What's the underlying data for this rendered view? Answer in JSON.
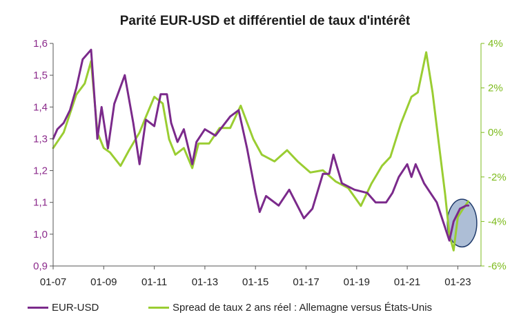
{
  "chart_data": {
    "type": "line",
    "title": "Parité EUR-USD et différentiel de taux d'intérêt",
    "xlabel": "",
    "ylabel": "",
    "x_tick_labels": [
      "01-07",
      "01-09",
      "01-11",
      "01-13",
      "01-15",
      "01-17",
      "01-19",
      "01-21",
      "01-23"
    ],
    "x_range": [
      "2007-01",
      "2023-12"
    ],
    "y_left": {
      "ticks": [
        "0,9",
        "1,0",
        "1,1",
        "1,2",
        "1,3",
        "1,4",
        "1,5",
        "1,6"
      ],
      "range": [
        0.9,
        1.6
      ],
      "color": "#8b2a8b"
    },
    "y_right": {
      "ticks": [
        "-6%",
        "-4%",
        "-2%",
        "0%",
        "2%",
        "4%"
      ],
      "range": [
        -6,
        4
      ],
      "color": "#7dbb1c"
    },
    "grid": false,
    "legend_position": "bottom",
    "highlight": {
      "shape": "ellipse",
      "x_range": [
        "2022-08",
        "2023-10"
      ],
      "y_range": [
        0.96,
        1.11
      ],
      "fill": "#4a6fa5",
      "stroke": "#1f3a6b"
    },
    "series": [
      {
        "name": "EUR-USD",
        "axis": "left",
        "color": "#7b2a8b",
        "x": [
          "2007-01",
          "2007-03",
          "2007-06",
          "2007-09",
          "2007-12",
          "2008-03",
          "2008-07",
          "2008-10",
          "2008-12",
          "2009-03",
          "2009-06",
          "2009-11",
          "2010-03",
          "2010-06",
          "2010-09",
          "2011-01",
          "2011-04",
          "2011-07",
          "2011-09",
          "2011-12",
          "2012-03",
          "2012-07",
          "2012-09",
          "2013-01",
          "2013-06",
          "2014-01",
          "2014-05",
          "2014-09",
          "2015-01",
          "2015-03",
          "2015-06",
          "2015-12",
          "2016-05",
          "2016-12",
          "2017-04",
          "2017-09",
          "2017-12",
          "2018-02",
          "2018-06",
          "2018-12",
          "2019-06",
          "2019-10",
          "2020-03",
          "2020-06",
          "2020-09",
          "2021-01",
          "2021-03",
          "2021-05",
          "2021-09",
          "2021-12",
          "2022-03",
          "2022-07",
          "2022-09",
          "2022-11",
          "2023-02",
          "2023-05",
          "2023-06"
        ],
        "y": [
          1.3,
          1.33,
          1.35,
          1.39,
          1.46,
          1.55,
          1.58,
          1.3,
          1.4,
          1.27,
          1.41,
          1.5,
          1.35,
          1.22,
          1.36,
          1.34,
          1.44,
          1.44,
          1.35,
          1.29,
          1.33,
          1.22,
          1.29,
          1.33,
          1.31,
          1.37,
          1.39,
          1.27,
          1.13,
          1.07,
          1.12,
          1.09,
          1.14,
          1.05,
          1.08,
          1.19,
          1.19,
          1.25,
          1.16,
          1.14,
          1.13,
          1.1,
          1.1,
          1.13,
          1.18,
          1.22,
          1.18,
          1.22,
          1.16,
          1.13,
          1.1,
          1.02,
          0.98,
          1.04,
          1.08,
          1.09,
          1.09
        ]
      },
      {
        "name": "Spread de taux 2 ans réel : Allemagne versus États-Unis",
        "axis": "right",
        "color": "#9acd32",
        "x": [
          "2007-01",
          "2007-06",
          "2007-12",
          "2008-04",
          "2008-07",
          "2008-10",
          "2009-01",
          "2009-04",
          "2009-09",
          "2010-01",
          "2010-06",
          "2010-09",
          "2011-01",
          "2011-05",
          "2011-08",
          "2011-11",
          "2012-03",
          "2012-07",
          "2012-10",
          "2013-03",
          "2013-08",
          "2014-01",
          "2014-06",
          "2014-12",
          "2015-04",
          "2015-10",
          "2016-04",
          "2016-09",
          "2017-03",
          "2017-09",
          "2018-03",
          "2018-09",
          "2019-03",
          "2019-08",
          "2020-01",
          "2020-05",
          "2020-10",
          "2021-03",
          "2021-06",
          "2021-10",
          "2022-01",
          "2022-04",
          "2022-07",
          "2022-09",
          "2022-11",
          "2023-01",
          "2023-03",
          "2023-06"
        ],
        "y": [
          -0.7,
          0.0,
          1.7,
          2.2,
          3.2,
          0.0,
          -0.7,
          -0.9,
          -1.5,
          -0.8,
          0.0,
          0.7,
          1.6,
          1.3,
          -0.3,
          -1.0,
          -0.7,
          -1.6,
          -0.5,
          -0.5,
          0.2,
          0.2,
          1.2,
          -0.3,
          -1.0,
          -1.3,
          -0.8,
          -1.3,
          -1.8,
          -1.7,
          -2.2,
          -2.5,
          -3.3,
          -2.3,
          -1.5,
          -1.1,
          0.4,
          1.6,
          1.8,
          3.6,
          1.8,
          -0.5,
          -2.8,
          -4.6,
          -5.3,
          -3.8,
          -3.5,
          -3.1
        ]
      }
    ]
  }
}
